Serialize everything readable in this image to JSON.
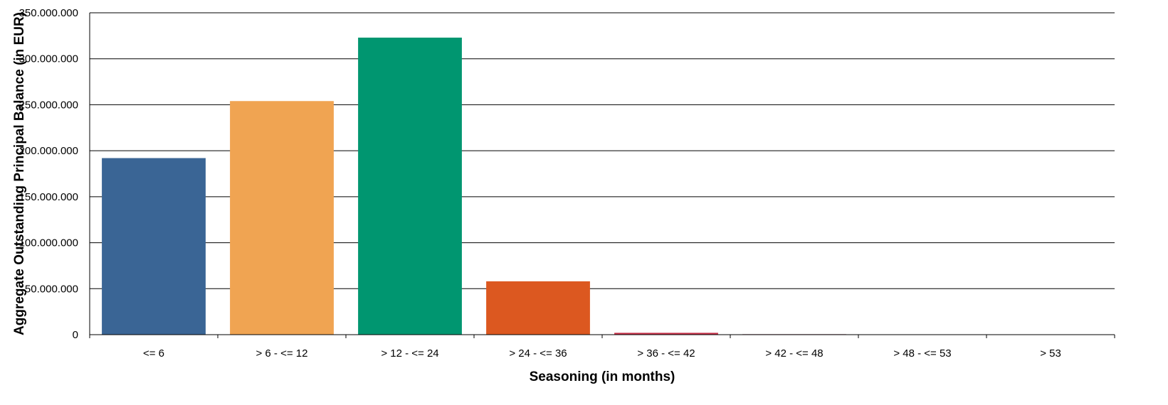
{
  "chart_data": {
    "type": "bar",
    "title": "",
    "xlabel": "Seasoning (in months)",
    "ylabel": "Aggregate Outstanding Principal Balance (in EUR)",
    "categories": [
      "<= 6",
      "> 6 - <= 12",
      "> 12 - <= 24",
      "> 24 - <= 36",
      "> 36 - <= 42",
      "> 42 - <= 48",
      "> 48 - <= 53",
      "> 53"
    ],
    "values": [
      192000000,
      254000000,
      323000000,
      58000000,
      2000000,
      500000,
      300000,
      200000
    ],
    "colors": [
      "#3a6595",
      "#f0a452",
      "#009670",
      "#dc5820",
      "#c8324a",
      "#7a1f3a",
      "#555555",
      "#555555"
    ],
    "ylim": [
      0,
      350000000
    ],
    "yticks": [
      0,
      50000000,
      100000000,
      150000000,
      200000000,
      250000000,
      300000000,
      350000000
    ],
    "ytick_labels": [
      "0",
      "50.000.000",
      "100.000.000",
      "150.000.000",
      "200.000.000",
      "250.000.000",
      "300.000.000",
      "350.000.000"
    ],
    "grid": true,
    "legend": "none"
  }
}
